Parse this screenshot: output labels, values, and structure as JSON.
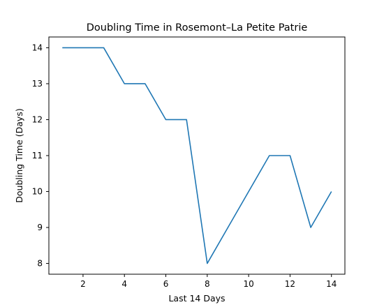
{
  "chart_data": {
    "type": "line",
    "title": "Doubling Time in  Rosemont–La Petite Patrie",
    "xlabel": "Last 14 Days",
    "ylabel": "Doubling Time (Days)",
    "xlim": [
      0.35,
      14.65
    ],
    "ylim": [
      7.7,
      14.3
    ],
    "xticks": [
      2,
      4,
      6,
      8,
      10,
      12,
      14
    ],
    "yticks": [
      8,
      9,
      10,
      11,
      12,
      13,
      14
    ],
    "x": [
      1,
      2,
      3,
      4,
      5,
      6,
      7,
      8,
      9,
      10,
      11,
      12,
      13,
      14
    ],
    "series": [
      {
        "values": [
          14,
          14,
          14,
          13,
          13,
          12,
          12,
          8,
          9,
          10,
          11,
          11,
          9,
          10
        ],
        "color": "#1f77b4"
      }
    ],
    "grid": false
  }
}
